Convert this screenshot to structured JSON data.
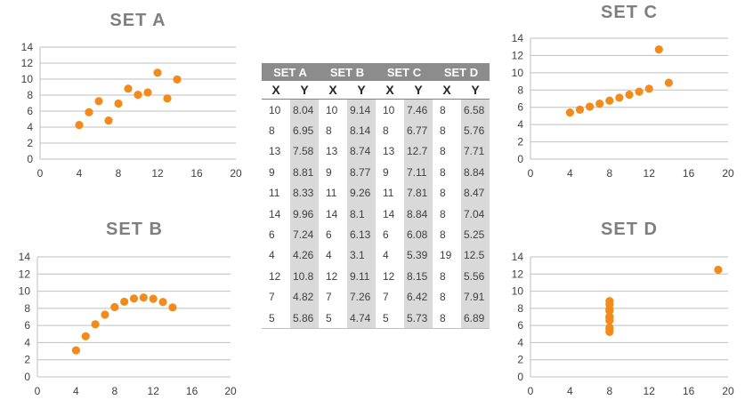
{
  "chart_data": [
    {
      "type": "scatter",
      "title": "SET A",
      "xlim": [
        0,
        20
      ],
      "ylim": [
        0,
        14
      ],
      "xticks": [
        0,
        4,
        8,
        12,
        16,
        20
      ],
      "yticks": [
        0,
        2,
        4,
        6,
        8,
        10,
        12,
        14
      ],
      "grid": true,
      "x": [
        10,
        8,
        13,
        9,
        11,
        14,
        6,
        4,
        12,
        7,
        5
      ],
      "y": [
        8.04,
        6.95,
        7.58,
        8.81,
        8.33,
        9.96,
        7.24,
        4.26,
        10.8,
        4.82,
        5.86
      ]
    },
    {
      "type": "scatter",
      "title": "SET B",
      "xlim": [
        0,
        20
      ],
      "ylim": [
        0,
        14
      ],
      "xticks": [
        0,
        4,
        8,
        12,
        16,
        20
      ],
      "yticks": [
        0,
        2,
        4,
        6,
        8,
        10,
        12,
        14
      ],
      "grid": true,
      "x": [
        10,
        8,
        13,
        9,
        11,
        14,
        6,
        4,
        12,
        7,
        5
      ],
      "y": [
        9.14,
        8.14,
        8.74,
        8.77,
        9.26,
        8.1,
        6.13,
        3.1,
        9.11,
        7.26,
        4.74
      ]
    },
    {
      "type": "scatter",
      "title": "SET C",
      "xlim": [
        0,
        20
      ],
      "ylim": [
        0,
        14
      ],
      "xticks": [
        0,
        4,
        8,
        12,
        16,
        20
      ],
      "yticks": [
        0,
        2,
        4,
        6,
        8,
        10,
        12,
        14
      ],
      "grid": true,
      "x": [
        10,
        8,
        13,
        9,
        11,
        14,
        6,
        4,
        12,
        7,
        5
      ],
      "y": [
        7.46,
        6.77,
        12.7,
        7.11,
        7.81,
        8.84,
        6.08,
        5.39,
        8.15,
        6.42,
        5.73
      ]
    },
    {
      "type": "scatter",
      "title": "SET D",
      "xlim": [
        0,
        20
      ],
      "ylim": [
        0,
        14
      ],
      "xticks": [
        0,
        4,
        8,
        12,
        16,
        20
      ],
      "yticks": [
        0,
        2,
        4,
        6,
        8,
        10,
        12,
        14
      ],
      "grid": true,
      "x": [
        8,
        8,
        8,
        8,
        8,
        8,
        8,
        19,
        8,
        8,
        8
      ],
      "y": [
        6.58,
        5.76,
        7.71,
        8.84,
        8.47,
        7.04,
        5.25,
        12.5,
        5.56,
        7.91,
        6.89
      ]
    },
    {
      "type": "table",
      "set_headers": [
        "SET A",
        "SET B",
        "SET C",
        "SET D"
      ],
      "column_headers": [
        "X",
        "Y",
        "X",
        "Y",
        "X",
        "Y",
        "X",
        "Y"
      ],
      "rows": [
        [
          "10",
          "8.04",
          "10",
          "9.14",
          "10",
          "7.46",
          "8",
          "6.58"
        ],
        [
          "8",
          "6.95",
          "8",
          "8.14",
          "8",
          "6.77",
          "8",
          "5.76"
        ],
        [
          "13",
          "7.58",
          "13",
          "8.74",
          "13",
          "12.7",
          "8",
          "7.71"
        ],
        [
          "9",
          "8.81",
          "9",
          "8.77",
          "9",
          "7.11",
          "8",
          "8.84"
        ],
        [
          "11",
          "8.33",
          "11",
          "9.26",
          "11",
          "7.81",
          "8",
          "8.47"
        ],
        [
          "14",
          "9.96",
          "14",
          "8.1",
          "14",
          "8.84",
          "8",
          "7.04"
        ],
        [
          "6",
          "7.24",
          "6",
          "6.13",
          "6",
          "6.08",
          "8",
          "5.25"
        ],
        [
          "4",
          "4.26",
          "4",
          "3.1",
          "4",
          "5.39",
          "19",
          "12.5"
        ],
        [
          "12",
          "10.8",
          "12",
          "9.11",
          "12",
          "8.15",
          "8",
          "5.56"
        ],
        [
          "7",
          "4.82",
          "7",
          "7.26",
          "7",
          "6.42",
          "8",
          "7.91"
        ],
        [
          "5",
          "5.86",
          "5",
          "4.74",
          "5",
          "5.73",
          "8",
          "6.89"
        ]
      ]
    }
  ],
  "colors": {
    "marker": "#f28a1c",
    "grid": "#bfbfbf",
    "title": "#7f7f7f",
    "table_header": "#8c8c8c",
    "table_shade": "#d9d9d9"
  }
}
